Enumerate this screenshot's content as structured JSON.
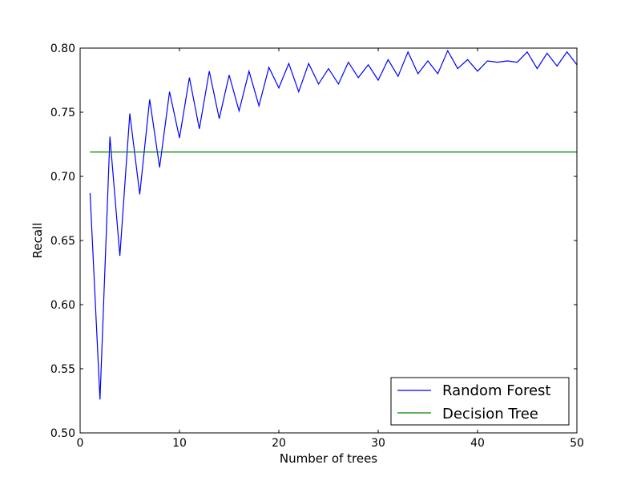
{
  "chart_data": {
    "type": "line",
    "title": "",
    "xlabel": "Number of trees",
    "ylabel": "Recall",
    "xlim": [
      0,
      50
    ],
    "ylim": [
      0.5,
      0.8
    ],
    "xticks": [
      0,
      10,
      20,
      30,
      40,
      50
    ],
    "yticks": [
      0.5,
      0.55,
      0.6,
      0.65,
      0.7,
      0.75,
      0.8
    ],
    "xtick_labels": [
      "0",
      "10",
      "20",
      "30",
      "40",
      "50"
    ],
    "ytick_labels": [
      "0.50",
      "0.55",
      "0.60",
      "0.65",
      "0.70",
      "0.75",
      "0.80"
    ],
    "grid": false,
    "legend_position": "lower-right",
    "series": [
      {
        "name": "Random Forest",
        "color": "#0000ff",
        "x": [
          1,
          2,
          3,
          4,
          5,
          6,
          7,
          8,
          9,
          10,
          11,
          12,
          13,
          14,
          15,
          16,
          17,
          18,
          19,
          20,
          21,
          22,
          23,
          24,
          25,
          26,
          27,
          28,
          29,
          30,
          31,
          32,
          33,
          34,
          35,
          36,
          37,
          38,
          39,
          40,
          41,
          42,
          43,
          44,
          45,
          46,
          47,
          48,
          49,
          50
        ],
        "y": [
          0.687,
          0.526,
          0.731,
          0.638,
          0.749,
          0.686,
          0.76,
          0.707,
          0.766,
          0.73,
          0.777,
          0.737,
          0.782,
          0.745,
          0.779,
          0.751,
          0.782,
          0.755,
          0.785,
          0.769,
          0.788,
          0.766,
          0.788,
          0.772,
          0.784,
          0.772,
          0.789,
          0.777,
          0.787,
          0.775,
          0.791,
          0.778,
          0.797,
          0.78,
          0.79,
          0.78,
          0.798,
          0.784,
          0.791,
          0.782,
          0.79,
          0.789,
          0.79,
          0.789,
          0.797,
          0.784,
          0.796,
          0.786,
          0.797,
          0.787
        ]
      },
      {
        "name": "Decision Tree",
        "color": "#008000",
        "x": [
          1,
          50
        ],
        "y": [
          0.719,
          0.719
        ]
      }
    ]
  }
}
